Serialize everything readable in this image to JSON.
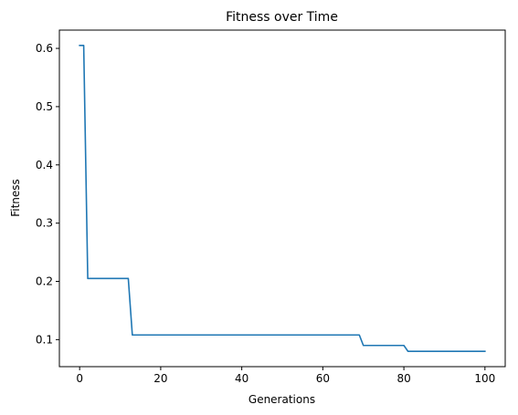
{
  "chart_data": {
    "type": "line",
    "title": "Fitness over Time",
    "xlabel": "Generations",
    "ylabel": "Fitness",
    "xlim": [
      -5,
      105
    ],
    "ylim": [
      0.0536,
      0.6314
    ],
    "grid": false,
    "x_ticks": [
      0,
      20,
      40,
      60,
      80,
      100
    ],
    "y_ticks": [
      0.1,
      0.2,
      0.3,
      0.4,
      0.5,
      0.6
    ],
    "x_tick_labels": [
      "0",
      "20",
      "40",
      "60",
      "80",
      "100"
    ],
    "y_tick_labels": [
      "0.1",
      "0.2",
      "0.3",
      "0.4",
      "0.5",
      "0.6"
    ],
    "series": [
      {
        "color": "#1f77b4",
        "x": [
          0,
          1,
          2,
          3,
          4,
          5,
          6,
          7,
          8,
          9,
          10,
          11,
          12,
          13,
          14,
          15,
          16,
          17,
          18,
          19,
          20,
          21,
          22,
          23,
          24,
          25,
          26,
          27,
          28,
          29,
          30,
          31,
          32,
          33,
          34,
          35,
          36,
          37,
          38,
          39,
          40,
          41,
          42,
          43,
          44,
          45,
          46,
          47,
          48,
          49,
          50,
          51,
          52,
          53,
          54,
          55,
          56,
          57,
          58,
          59,
          60,
          61,
          62,
          63,
          64,
          65,
          66,
          67,
          68,
          69,
          70,
          71,
          72,
          73,
          74,
          75,
          76,
          77,
          78,
          79,
          80,
          81,
          82,
          83,
          84,
          85,
          86,
          87,
          88,
          89,
          90,
          91,
          92,
          93,
          94,
          95,
          96,
          97,
          98,
          99,
          100
        ],
        "values": [
          0.605,
          0.605,
          0.205,
          0.205,
          0.205,
          0.205,
          0.205,
          0.205,
          0.205,
          0.205,
          0.205,
          0.205,
          0.205,
          0.108,
          0.108,
          0.108,
          0.108,
          0.108,
          0.108,
          0.108,
          0.108,
          0.108,
          0.108,
          0.108,
          0.108,
          0.108,
          0.108,
          0.108,
          0.108,
          0.108,
          0.108,
          0.108,
          0.108,
          0.108,
          0.108,
          0.108,
          0.108,
          0.108,
          0.108,
          0.108,
          0.108,
          0.108,
          0.108,
          0.108,
          0.108,
          0.108,
          0.108,
          0.108,
          0.108,
          0.108,
          0.108,
          0.108,
          0.108,
          0.108,
          0.108,
          0.108,
          0.108,
          0.108,
          0.108,
          0.108,
          0.108,
          0.108,
          0.108,
          0.108,
          0.108,
          0.108,
          0.108,
          0.108,
          0.108,
          0.108,
          0.09,
          0.09,
          0.09,
          0.09,
          0.09,
          0.09,
          0.09,
          0.09,
          0.09,
          0.09,
          0.09,
          0.08,
          0.08,
          0.08,
          0.08,
          0.08,
          0.08,
          0.08,
          0.08,
          0.08,
          0.08,
          0.08,
          0.08,
          0.08,
          0.08,
          0.08,
          0.08,
          0.08,
          0.08,
          0.08,
          0.08
        ]
      }
    ]
  }
}
